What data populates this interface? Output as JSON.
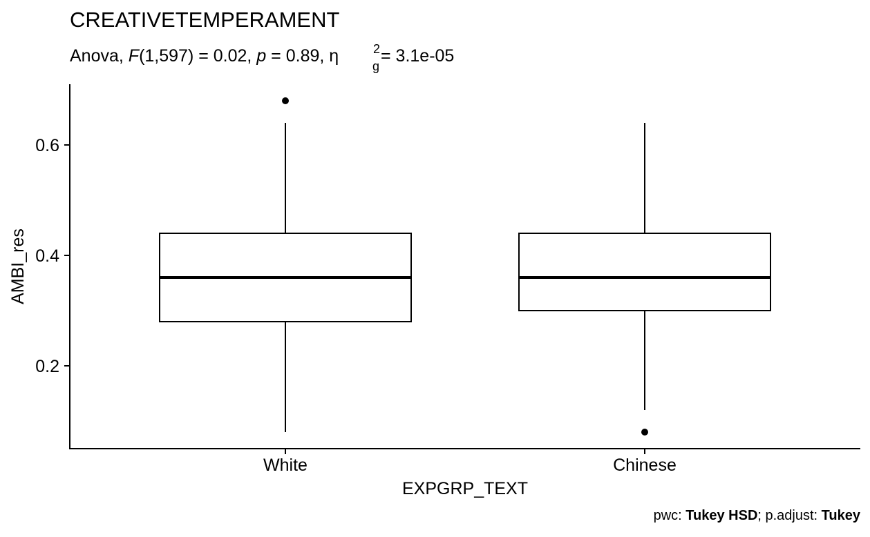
{
  "chart_data": {
    "type": "box",
    "title": "CREATIVETEMPERAMENT",
    "subtitle": {
      "prefix": "Anova, ",
      "stat_symbol": "F",
      "df": "(1,597) = 0.02, ",
      "p_symbol": "p",
      "p_value": " = 0.89, ",
      "effect_symbol": "η",
      "effect_subscript": "g",
      "effect_superscript": "2",
      "effect_value": " = 3.1e-05"
    },
    "xlabel": "EXPGRP_TEXT",
    "ylabel": "AMBI_res",
    "categories": [
      "White",
      "Chinese"
    ],
    "ylim": [
      0.05,
      0.71
    ],
    "yticks": [
      {
        "value": 0.2,
        "label": "0.2"
      },
      {
        "value": 0.4,
        "label": "0.4"
      },
      {
        "value": 0.6,
        "label": "0.6"
      }
    ],
    "boxes": [
      {
        "category": "White",
        "whisker_low": 0.08,
        "q1": 0.28,
        "median": 0.36,
        "q3": 0.44,
        "whisker_high": 0.64,
        "outliers": [
          0.68
        ]
      },
      {
        "category": "Chinese",
        "whisker_low": 0.12,
        "q1": 0.3,
        "median": 0.36,
        "q3": 0.44,
        "whisker_high": 0.64,
        "outliers": [
          0.08
        ]
      }
    ],
    "grid": false,
    "caption": {
      "part1": "pwc: ",
      "part2": "Tukey HSD",
      "part3": "; p.adjust: ",
      "part4": "Tukey"
    }
  }
}
